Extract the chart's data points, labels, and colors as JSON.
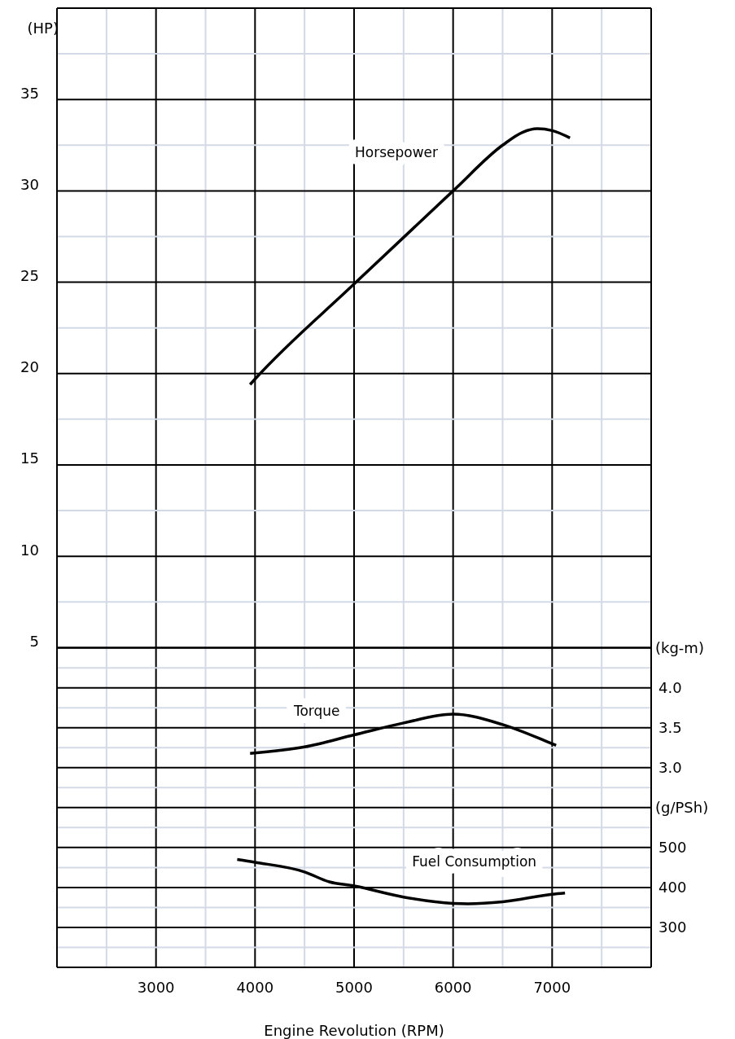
{
  "chart_data": {
    "type": "line",
    "xlabel": "Engine Revolution (RPM)",
    "ylabel": "(HP)",
    "y2label": "(kg-m)",
    "y3label": "(g/PSh)",
    "grid": true,
    "xlim": [
      2000,
      8000
    ],
    "xticks": [
      {
        "value": 2500,
        "label": null
      },
      3000,
      {
        "value": 3500,
        "label": null
      },
      4000,
      {
        "value": 4500,
        "label": null
      },
      5000,
      {
        "value": 5500,
        "label": null
      },
      6000,
      {
        "value": 6500,
        "label": null
      },
      7000,
      {
        "value": 7500,
        "label": null
      }
    ],
    "ylim": [
      -12.5,
      40
    ],
    "yticks": [
      5,
      {
        "value": 7.5,
        "label": null
      },
      10,
      {
        "value": 12.5,
        "label": null
      },
      15,
      {
        "value": 17.5,
        "label": null
      },
      20,
      {
        "value": 22.5,
        "label": null
      },
      25,
      {
        "value": 27.5,
        "label": null
      },
      30,
      {
        "value": 32.5,
        "label": null
      },
      35,
      {
        "value": 37.5,
        "label": null
      }
    ],
    "y2lim": [
      0.5,
      12.51
    ],
    "y2ticks": [
      {
        "value": 2.75,
        "label": null
      },
      {
        "value": 3,
        "label": "3.0"
      },
      {
        "value": 3.25,
        "label": null
      },
      3.5,
      {
        "value": 3.75,
        "label": null
      },
      {
        "value": 4,
        "label": "4.0"
      },
      {
        "value": 4.25,
        "label": null
      }
    ],
    "y3lim": [
      200,
      2602
    ],
    "y3ticks": [
      {
        "value": 250,
        "label": null
      },
      300,
      {
        "value": 350,
        "label": null
      },
      400,
      {
        "value": 450,
        "label": null
      },
      500,
      {
        "value": 550,
        "label": null
      }
    ],
    "series": [
      {
        "name": "Horsepower",
        "color": "#000000",
        "x": [
          3950,
          4000,
          5000,
          6000,
          6500,
          6700,
          6850,
          7000,
          7180
        ],
        "values": [
          19.4,
          19.7,
          24.9,
          30.0,
          32.5,
          33.2,
          33.4,
          33.3,
          32.9
        ]
      },
      {
        "name": "Torque",
        "color": "#000000",
        "axis": "y2",
        "x": [
          3950,
          4500,
          5000,
          5500,
          6000,
          6500,
          7000,
          7040
        ],
        "values": [
          3.18,
          3.26,
          3.41,
          3.56,
          3.67,
          3.54,
          3.3,
          3.28
        ]
      },
      {
        "name": "Fuel Consumption",
        "color": "#000000",
        "axis": "y3",
        "x": [
          3820,
          4000,
          4500,
          4750,
          5000,
          5500,
          6000,
          6150,
          6500,
          7000,
          7130
        ],
        "values": [
          470,
          463,
          439,
          414,
          404,
          376,
          360,
          359,
          364,
          383,
          386
        ]
      }
    ]
  }
}
